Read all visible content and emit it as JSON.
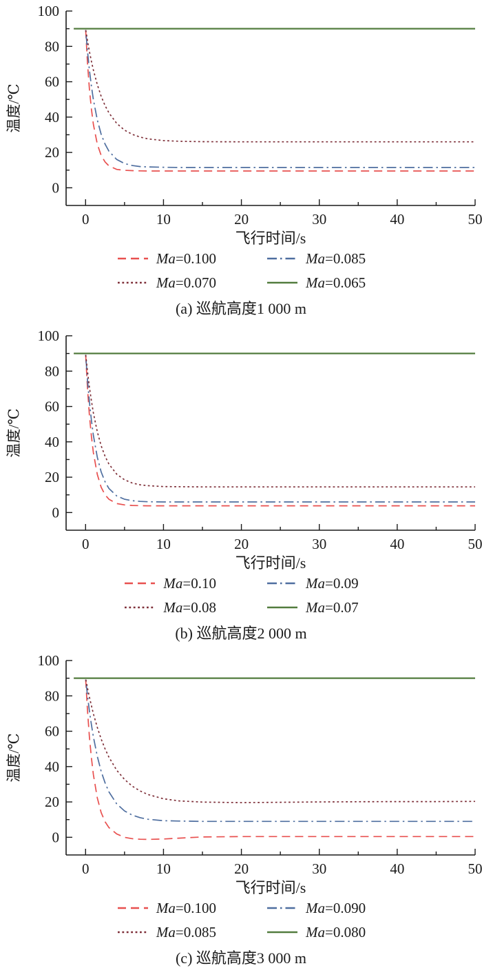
{
  "chart_data": [
    {
      "type": "line",
      "title": "(a) 巡航高度1 000 m",
      "xlabel": "飞行时间/s",
      "ylabel": "温度/℃",
      "xlim": [
        -2.5,
        50
      ],
      "ylim": [
        -10,
        100
      ],
      "x_major_ticks": [
        0,
        10,
        20,
        30,
        40,
        50
      ],
      "x_minor_ticks": [
        5,
        15,
        25,
        35,
        45
      ],
      "y_major_ticks": [
        0,
        20,
        40,
        60,
        80,
        100
      ],
      "y_minor_ticks": [
        10,
        30,
        50,
        70,
        90
      ],
      "grid": false,
      "legend_position": "below",
      "x": [
        -1.5,
        -1,
        -0.5,
        0,
        0.25,
        0.5,
        0.75,
        1,
        1.5,
        2,
        2.5,
        3,
        4,
        5,
        6,
        7,
        8,
        10,
        12,
        15,
        20,
        25,
        30,
        35,
        40,
        45,
        50
      ],
      "series": [
        {
          "name": "Ma=0.100",
          "color": "#e8504f",
          "dash": "dash",
          "values": [
            90,
            90,
            90,
            90,
            70.3,
            55.6,
            44.4,
            35.9,
            24.7,
            18.3,
            14.6,
            12.4,
            10.4,
            9.9,
            9.7,
            9.6,
            9.5,
            9.5,
            9.5,
            9.5,
            9.5,
            9.5,
            9.5,
            9.5,
            9.5,
            9.5,
            9.5
          ]
        },
        {
          "name": "Ma=0.085",
          "color": "#4e6e9f",
          "dash": "dashdot",
          "values": [
            90,
            90,
            90,
            90,
            77.2,
            66.4,
            57.4,
            49.9,
            38.4,
            30.3,
            24.7,
            20.7,
            16.0,
            13.7,
            12.6,
            12.0,
            11.8,
            11.6,
            11.5,
            11.5,
            11.5,
            11.5,
            11.5,
            11.5,
            11.5,
            11.5,
            11.5
          ]
        },
        {
          "name": "Ma=0.070",
          "color": "#7e2f38",
          "dash": "dot",
          "values": [
            90,
            90,
            90,
            90,
            83.1,
            77.0,
            71.5,
            66.6,
            58.4,
            51.8,
            46.5,
            42.4,
            36.4,
            32.6,
            30.2,
            28.7,
            27.7,
            26.7,
            26.3,
            26.1,
            26,
            26,
            26,
            26,
            26,
            26,
            26
          ]
        },
        {
          "name": "Ma=0.065",
          "color": "#527c3e",
          "dash": "solid",
          "values": [
            90,
            90,
            90,
            90,
            90,
            90,
            90,
            90,
            90,
            90,
            90,
            90,
            90,
            90,
            90,
            90,
            90,
            90,
            90,
            90,
            90,
            90,
            90,
            90,
            90,
            90,
            90
          ]
        }
      ]
    },
    {
      "type": "line",
      "title": "(b) 巡航高度2 000 m",
      "xlabel": "飞行时间/s",
      "ylabel": "温度/℃",
      "xlim": [
        -2.5,
        50
      ],
      "ylim": [
        -10,
        100
      ],
      "x_major_ticks": [
        0,
        10,
        20,
        30,
        40,
        50
      ],
      "x_minor_ticks": [
        5,
        15,
        25,
        35,
        45
      ],
      "y_major_ticks": [
        0,
        20,
        40,
        60,
        80,
        100
      ],
      "y_minor_ticks": [
        10,
        30,
        50,
        70,
        90
      ],
      "grid": false,
      "legend_position": "below",
      "x": [
        -1.5,
        -1,
        -0.5,
        0,
        0.25,
        0.5,
        0.75,
        1,
        1.5,
        2,
        2.5,
        3,
        4,
        5,
        6,
        7,
        8,
        10,
        12,
        15,
        20,
        25,
        30,
        35,
        40,
        45,
        50
      ],
      "series": [
        {
          "name": "Ma=0.10",
          "color": "#e8504f",
          "dash": "dash",
          "values": [
            90,
            90,
            90,
            90,
            70.1,
            54.7,
            43.0,
            33.9,
            21.6,
            14.3,
            10.0,
            7.5,
            5.1,
            4.3,
            4.0,
            3.9,
            3.8,
            3.8,
            3.8,
            3.8,
            3.8,
            3.8,
            3.8,
            3.8,
            3.8,
            3.8,
            3.8
          ]
        },
        {
          "name": "Ma=0.09",
          "color": "#4e6e9f",
          "dash": "dashdot",
          "values": [
            90,
            90,
            90,
            90,
            74.8,
            62.3,
            52.1,
            43.7,
            31.3,
            23.0,
            17.4,
            13.6,
            9.4,
            7.5,
            6.7,
            6.3,
            6.1,
            6.0,
            6.0,
            6.0,
            6.0,
            6.0,
            6.0,
            6.0,
            6.0,
            6.0,
            6.0
          ]
        },
        {
          "name": "Ma=0.08",
          "color": "#7e2f38",
          "dash": "dot",
          "values": [
            90,
            90,
            90,
            90,
            79.7,
            70.8,
            63.1,
            56.4,
            45.7,
            37.8,
            31.8,
            27.4,
            21.7,
            18.5,
            16.7,
            15.7,
            15.2,
            14.7,
            14.6,
            14.5,
            14.5,
            14.5,
            14.5,
            14.5,
            14.5,
            14.5,
            14.5
          ]
        },
        {
          "name": "Ma=0.07",
          "color": "#527c3e",
          "dash": "solid",
          "values": [
            90,
            90,
            90,
            90,
            90,
            90,
            90,
            90,
            90,
            90,
            90,
            90,
            90,
            90,
            90,
            90,
            90,
            90,
            90,
            90,
            90,
            90,
            90,
            90,
            90,
            90,
            90
          ]
        }
      ]
    },
    {
      "type": "line",
      "title": "(c) 巡航高度3 000 m",
      "xlabel": "飞行时间/s",
      "ylabel": "温度/℃",
      "xlim": [
        -2.5,
        50
      ],
      "ylim": [
        -10,
        100
      ],
      "x_major_ticks": [
        0,
        10,
        20,
        30,
        40,
        50
      ],
      "x_minor_ticks": [
        5,
        15,
        25,
        35,
        45
      ],
      "y_major_ticks": [
        0,
        20,
        40,
        60,
        80,
        100
      ],
      "y_minor_ticks": [
        10,
        30,
        50,
        70,
        90
      ],
      "grid": false,
      "legend_position": "below",
      "x": [
        -1.5,
        -1,
        -0.5,
        0,
        0.25,
        0.5,
        0.75,
        1,
        1.5,
        2,
        2.5,
        3,
        4,
        5,
        6,
        7,
        8,
        10,
        12,
        15,
        20,
        25,
        30,
        35,
        40,
        45,
        50
      ],
      "series": [
        {
          "name": "Ma=0.100",
          "color": "#e8504f",
          "dash": "dash",
          "values": [
            90,
            90,
            90,
            90,
            71.5,
            56.5,
            44.8,
            35.5,
            22.3,
            14.0,
            8.8,
            5.5,
            1.9,
            0.0,
            -0.8,
            -1.1,
            -1.2,
            -1.0,
            -0.5,
            0.2,
            0.4,
            0.4,
            0.4,
            0.4,
            0.4,
            0.4,
            0.4
          ]
        },
        {
          "name": "Ma=0.090",
          "color": "#4e6e9f",
          "dash": "dashdot",
          "values": [
            90,
            90,
            90,
            90,
            80.0,
            71.3,
            63.6,
            56.9,
            45.8,
            37.3,
            30.8,
            25.7,
            18.9,
            14.9,
            12.5,
            11.1,
            10.2,
            9.4,
            9.2,
            9.0,
            9.0,
            9.0,
            9.0,
            9.0,
            9.0,
            9.0,
            9.0
          ]
        },
        {
          "name": "Ma=0.085",
          "color": "#7e2f38",
          "dash": "dot",
          "values": [
            90,
            90,
            90,
            90,
            84.3,
            79.2,
            74.4,
            69.9,
            62.2,
            55.6,
            50.0,
            45.3,
            37.9,
            32.7,
            28.9,
            26.2,
            24.2,
            21.8,
            20.6,
            19.9,
            19.6,
            19.8,
            20.0,
            20.1,
            20.2,
            20.2,
            20.3
          ]
        },
        {
          "name": "Ma=0.080",
          "color": "#527c3e",
          "dash": "solid",
          "values": [
            90,
            90,
            90,
            90,
            90,
            90,
            90,
            90,
            90,
            90,
            90,
            90,
            90,
            90,
            90,
            90,
            90,
            90,
            90,
            90,
            90,
            90,
            90,
            90,
            90,
            90,
            90
          ]
        }
      ]
    }
  ],
  "style": {
    "axis_color": "#1a1a1a"
  }
}
